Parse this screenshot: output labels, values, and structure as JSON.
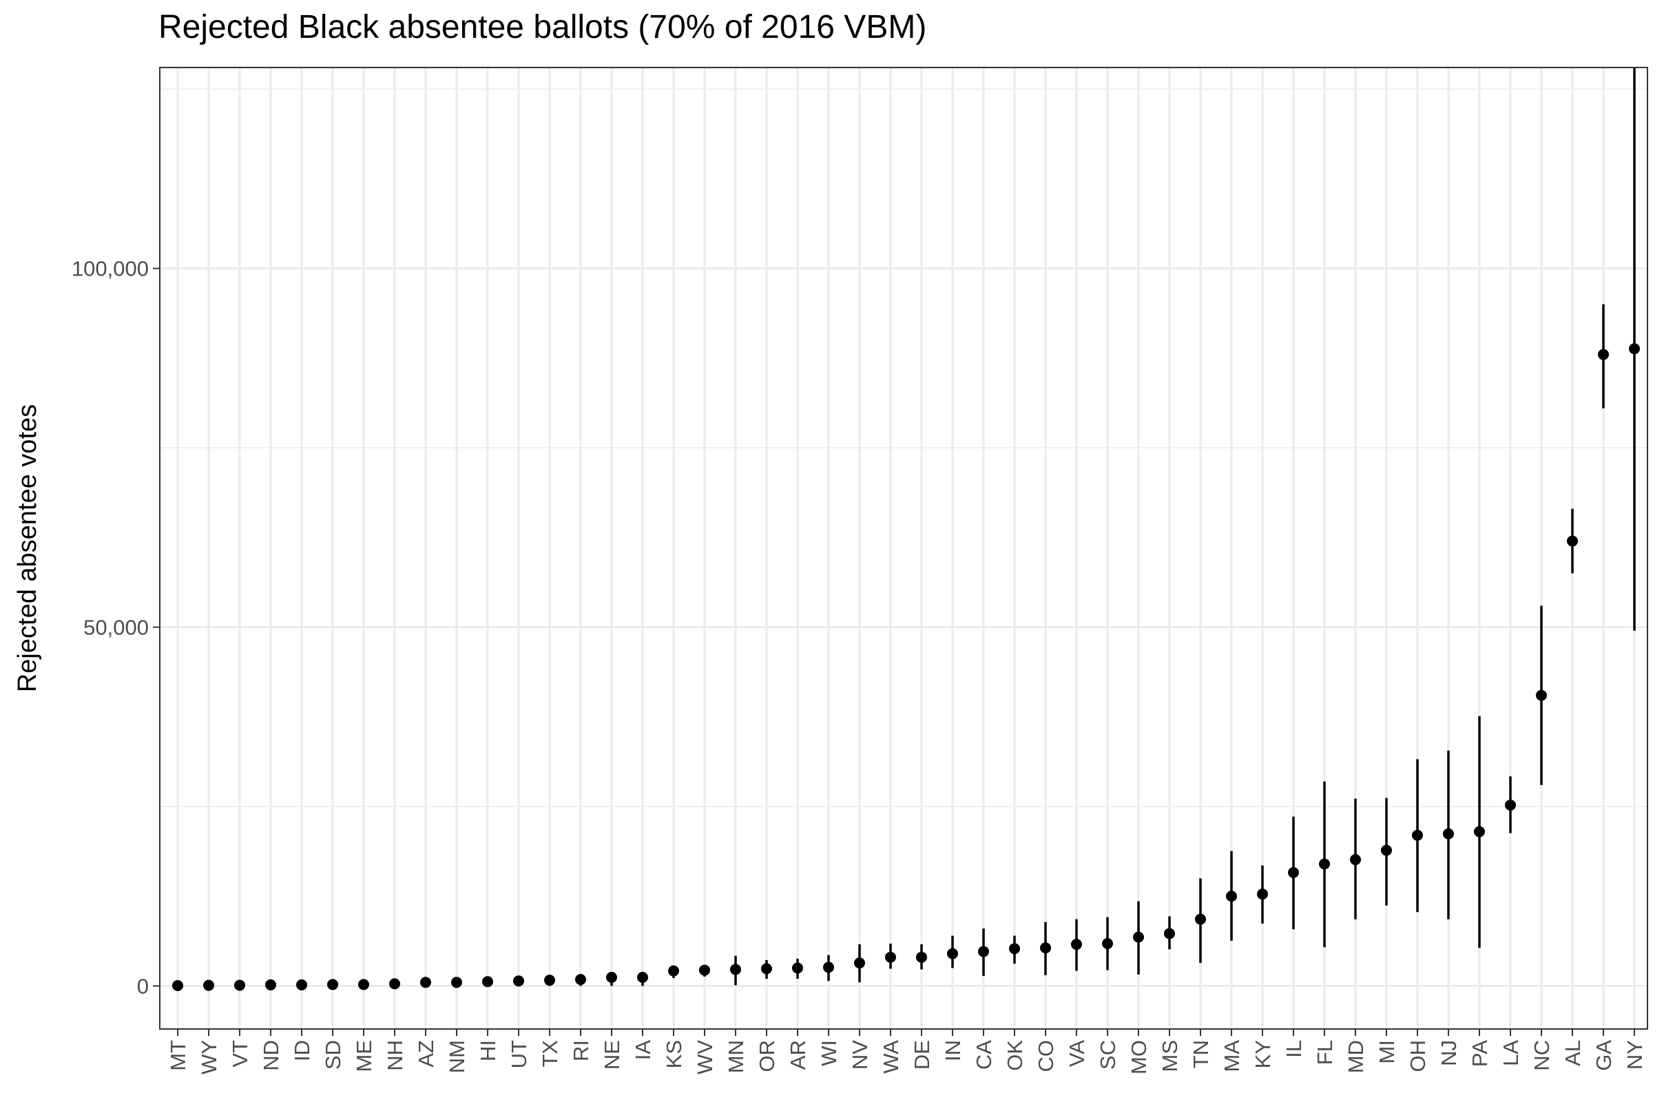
{
  "chart_data": {
    "type": "scatter",
    "title": "Rejected Black absentee ballots (70% of 2016 VBM)",
    "xlabel": "",
    "ylabel": "Rejected absentee votes",
    "ylim": [
      -6000,
      128000
    ],
    "y_ticks": [
      0,
      50000,
      100000
    ],
    "y_tick_labels": [
      "0",
      "50,000",
      "100,000"
    ],
    "grid": true,
    "error_bars": true,
    "categories": [
      "MT",
      "WY",
      "VT",
      "ND",
      "ID",
      "SD",
      "ME",
      "NH",
      "AZ",
      "NM",
      "HI",
      "UT",
      "TX",
      "RI",
      "NE",
      "IA",
      "KS",
      "WV",
      "MN",
      "OR",
      "AR",
      "WI",
      "NV",
      "WA",
      "DE",
      "IN",
      "CA",
      "OK",
      "CO",
      "VA",
      "SC",
      "MO",
      "MS",
      "TN",
      "MA",
      "KY",
      "IL",
      "FL",
      "MD",
      "MI",
      "OH",
      "NJ",
      "PA",
      "LA",
      "NC",
      "AL",
      "GA",
      "NY"
    ],
    "values": [
      50,
      80,
      100,
      150,
      150,
      200,
      200,
      300,
      500,
      500,
      600,
      700,
      800,
      900,
      1200,
      1200,
      2100,
      2200,
      2300,
      2400,
      2500,
      2600,
      3200,
      4000,
      4000,
      4500,
      4800,
      5200,
      5300,
      5800,
      5900,
      6800,
      7300,
      9300,
      12500,
      12800,
      15800,
      17000,
      17600,
      18900,
      21000,
      21200,
      21500,
      25200,
      40500,
      62000,
      88000,
      88800
    ],
    "lower": [
      0,
      0,
      0,
      0,
      0,
      0,
      0,
      0,
      0,
      0,
      0,
      0,
      0,
      0,
      0,
      0,
      1100,
      1300,
      100,
      1000,
      1000,
      700,
      500,
      2400,
      2300,
      2500,
      1400,
      3100,
      1500,
      2100,
      2200,
      1600,
      5100,
      3200,
      6300,
      8700,
      7900,
      5400,
      9300,
      11200,
      10300,
      9300,
      5300,
      21300,
      28000,
      57500,
      80500,
      49500
    ],
    "upper": [
      200,
      300,
      300,
      300,
      400,
      400,
      400,
      600,
      900,
      900,
      1000,
      1100,
      1200,
      1300,
      1600,
      1600,
      2800,
      2700,
      4200,
      3600,
      3800,
      4300,
      5800,
      5900,
      5800,
      7000,
      8000,
      7000,
      8900,
      9300,
      9600,
      11800,
      9700,
      15000,
      18800,
      16800,
      23600,
      28500,
      26100,
      26200,
      31600,
      32800,
      37600,
      29200,
      53000,
      66500,
      95000,
      128000
    ]
  }
}
